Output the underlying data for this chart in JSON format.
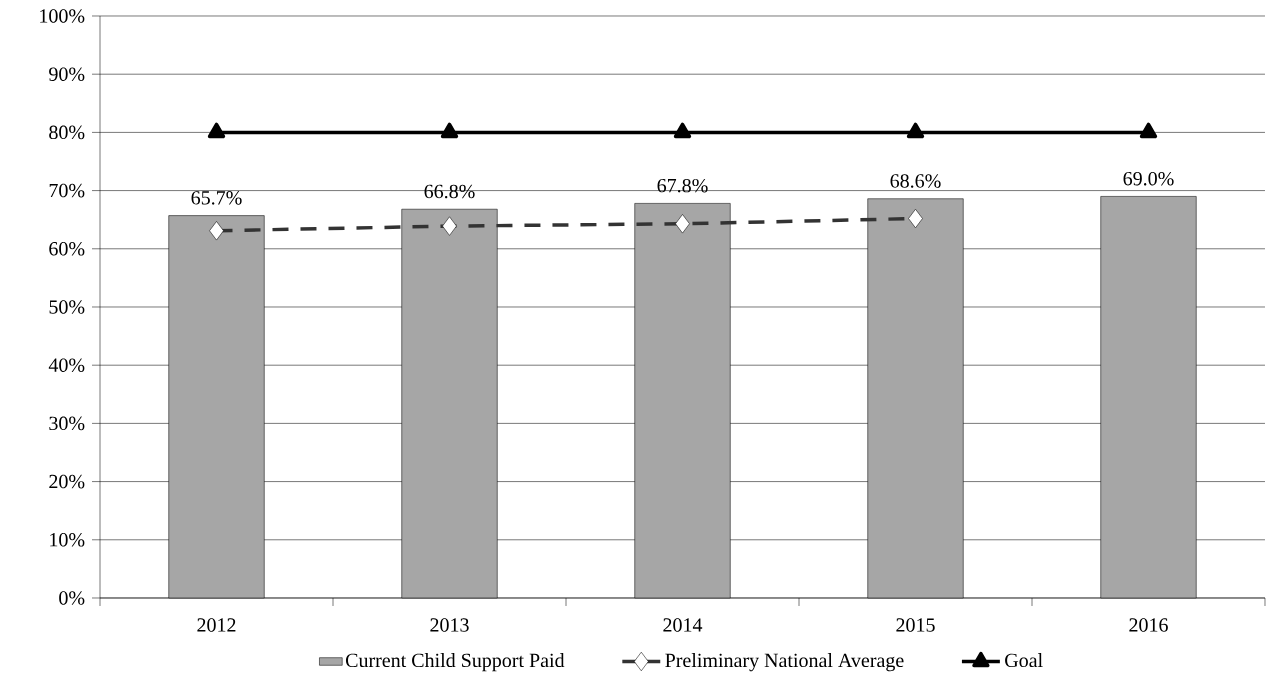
{
  "chart_data": {
    "type": "bar",
    "categories": [
      "2012",
      "2013",
      "2014",
      "2015",
      "2016"
    ],
    "series": [
      {
        "name": "Current Child Support Paid",
        "color": "#a6a6a6",
        "values": [
          65.7,
          66.8,
          67.8,
          68.6,
          69.0
        ],
        "value_labels": [
          "65.7%",
          "66.8%",
          "67.8%",
          "68.6%",
          "69.0%"
        ]
      },
      {
        "name": "Preliminary National Average",
        "type": "line",
        "color": "#333333",
        "marker": "diamond",
        "line_style": "dashed",
        "values": [
          63.1,
          63.9,
          64.3,
          65.2,
          null
        ]
      },
      {
        "name": "Goal",
        "type": "line",
        "color": "#000000",
        "marker": "triangle",
        "line_style": "solid",
        "values": [
          80,
          80,
          80,
          80,
          80
        ]
      }
    ],
    "ylim": [
      0,
      100
    ],
    "yticks": [
      {
        "value": 0,
        "label": "0%"
      },
      {
        "value": 10,
        "label": "10%"
      },
      {
        "value": 20,
        "label": "20%"
      },
      {
        "value": 30,
        "label": "30%"
      },
      {
        "value": 40,
        "label": "40%"
      },
      {
        "value": 50,
        "label": "50%"
      },
      {
        "value": 60,
        "label": "60%"
      },
      {
        "value": 70,
        "label": "70%"
      },
      {
        "value": 80,
        "label": "80%"
      },
      {
        "value": 90,
        "label": "90%"
      },
      {
        "value": 100,
        "label": "100%"
      }
    ],
    "grid": "y",
    "legend": "bottom"
  }
}
